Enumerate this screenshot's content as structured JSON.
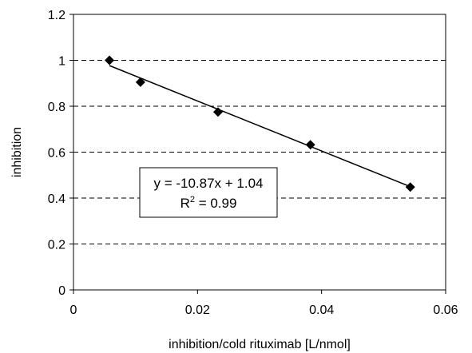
{
  "chart_data": {
    "type": "scatter",
    "title": "",
    "xlabel": "inhibition/cold rituximab [L/nmol]",
    "ylabel": "inhibition",
    "xlim": [
      0,
      0.06
    ],
    "ylim": [
      0,
      1.2
    ],
    "x_ticks": [
      "0",
      "0.02",
      "0.04",
      "0.06"
    ],
    "y_ticks": [
      "0",
      "0.2",
      "0.4",
      "0.6",
      "0.8",
      "1",
      "1.2"
    ],
    "grid": "horizontal dashed",
    "legend": "none",
    "marker": "diamond",
    "series": [
      {
        "x": [
          0.0058,
          0.0108,
          0.0233,
          0.0382,
          0.0543
        ],
        "y": [
          1.0,
          0.905,
          0.775,
          0.632,
          0.448
        ]
      }
    ],
    "trendline": {
      "type": "linear",
      "slope": -10.87,
      "intercept": 1.04,
      "x_range": [
        0.0058,
        0.0543
      ]
    },
    "annotation": {
      "equation": "y = -10.87x + 1.04",
      "r2_prefix": "R",
      "r2_sup": "2",
      "r2_suffix": " = 0.99"
    }
  }
}
